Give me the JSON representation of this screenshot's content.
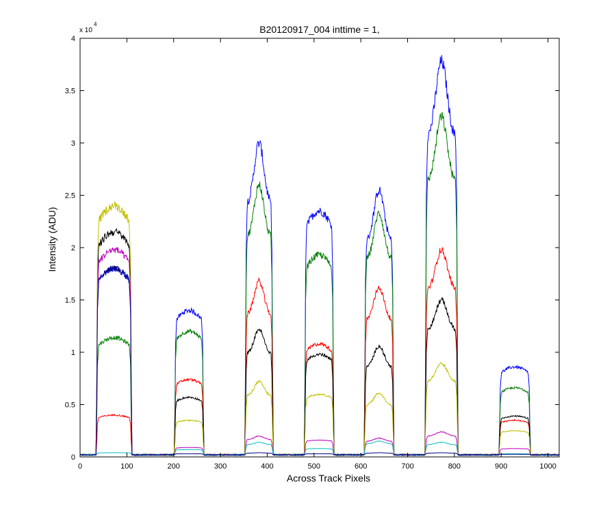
{
  "chart_data": {
    "type": "line",
    "title": "B20120917_004 inttime = 1,",
    "xlabel": "Across Track Pixels",
    "ylabel": "Intensity (ADU)",
    "y_multiplier_label": "x 10",
    "y_multiplier_exponent": "4",
    "xlim": [
      0,
      1024
    ],
    "ylim": [
      0,
      40000
    ],
    "x_ticks": [
      0,
      100,
      200,
      300,
      400,
      500,
      600,
      700,
      800,
      900,
      1000
    ],
    "x_tick_labels": [
      "0",
      "100",
      "200",
      "300",
      "400",
      "500",
      "600",
      "700",
      "800",
      "900",
      "1000"
    ],
    "y_ticks": [
      0,
      5000,
      10000,
      15000,
      20000,
      25000,
      30000,
      35000,
      40000
    ],
    "y_tick_labels": [
      "0",
      "0.5",
      "1",
      "1.5",
      "2",
      "2.5",
      "3",
      "3.5",
      "4"
    ],
    "grid": false,
    "baseline": 200,
    "segments": [
      {
        "start": 37,
        "end": 108,
        "profile": "flat"
      },
      {
        "start": 204,
        "end": 262,
        "profile": "flat"
      },
      {
        "start": 355,
        "end": 410,
        "profile": "peak"
      },
      {
        "start": 482,
        "end": 540,
        "profile": "flat"
      },
      {
        "start": 610,
        "end": 668,
        "profile": "peak"
      },
      {
        "start": 740,
        "end": 805,
        "profile": "peak"
      },
      {
        "start": 898,
        "end": 960,
        "profile": "flat"
      }
    ],
    "series": [
      {
        "color": "#0000ff",
        "plateaus": [
          18000,
          14000,
          30000,
          23500,
          25500,
          37800,
          8600
        ]
      },
      {
        "color": "#008000",
        "plateaus": [
          11400,
          12000,
          26000,
          19300,
          23300,
          32500,
          6600
        ]
      },
      {
        "color": "#ff0000",
        "plateaus": [
          4000,
          7400,
          16800,
          10800,
          16200,
          19800,
          3500
        ]
      },
      {
        "color": "#000000",
        "plateaus": [
          21500,
          5700,
          12200,
          9800,
          10600,
          15000,
          3900
        ]
      },
      {
        "color": "#c0c000",
        "plateaus": [
          24000,
          3500,
          7200,
          6000,
          6100,
          8900,
          2500
        ]
      },
      {
        "color": "#bf00bf",
        "plateaus": [
          19800,
          900,
          2000,
          1600,
          1800,
          2400,
          800
        ]
      },
      {
        "color": "#00bfbf",
        "plateaus": [
          400,
          700,
          1400,
          800,
          1500,
          1400,
          300
        ]
      },
      {
        "color": "#000080",
        "plateaus": [
          18000,
          300,
          400,
          300,
          400,
          400,
          250
        ]
      }
    ]
  }
}
